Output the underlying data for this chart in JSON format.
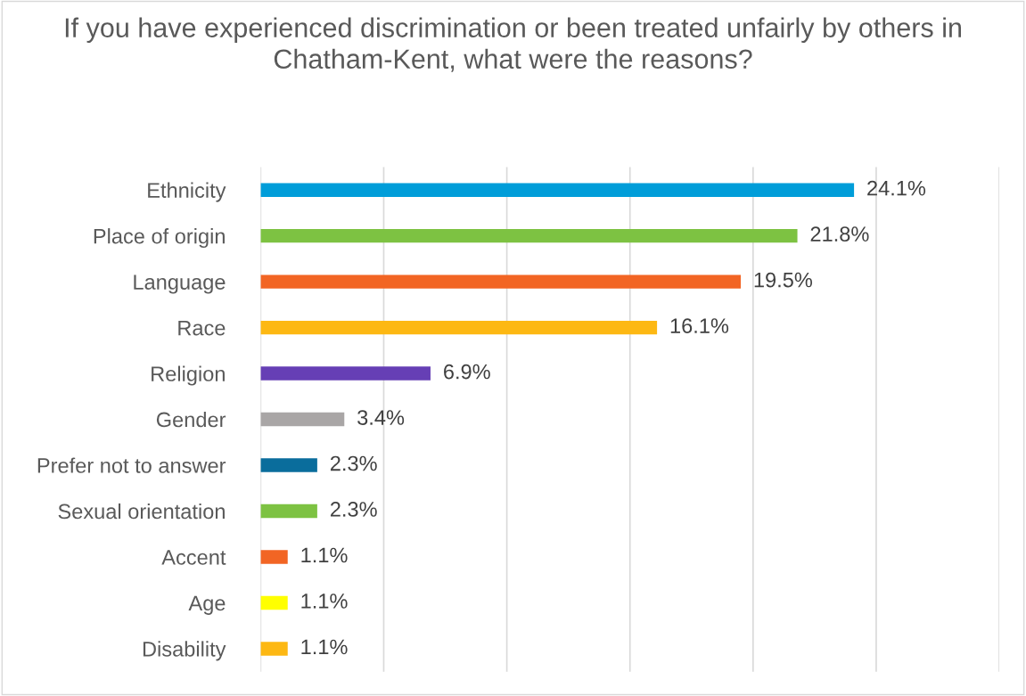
{
  "chart_data": {
    "type": "bar",
    "orientation": "horizontal",
    "title": "If you have experienced discrimination or been treated unfairly by others in Chatham-Kent, what were the reasons?",
    "categories": [
      "Ethnicity",
      "Place of origin",
      "Language",
      "Race",
      "Religion",
      "Gender",
      "Prefer not to answer",
      "Sexual orientation",
      "Accent",
      "Age",
      "Disability"
    ],
    "values": [
      24.1,
      21.8,
      19.5,
      16.1,
      6.9,
      3.4,
      2.3,
      2.3,
      1.1,
      1.1,
      1.1
    ],
    "colors": [
      "#009dd9",
      "#7dc242",
      "#f26524",
      "#fdb813",
      "#663fb5",
      "#a9a6a6",
      "#0a6d9c",
      "#7dc242",
      "#f26524",
      "#ffff00",
      "#fdb813"
    ],
    "value_labels": [
      "24.1%",
      "21.8%",
      "19.5%",
      "16.1%",
      "6.9%",
      "3.4%",
      "2.3%",
      "2.3%",
      "1.1%",
      "1.1%",
      "1.1%"
    ],
    "xlim": [
      0,
      30
    ],
    "xticks": [
      {
        "value": 0,
        "label": null
      },
      {
        "value": 5,
        "label": null
      },
      {
        "value": 10,
        "label": null
      },
      {
        "value": 15,
        "label": null
      },
      {
        "value": 20,
        "label": null
      },
      {
        "value": 25,
        "label": null
      },
      {
        "value": 30,
        "label": null
      }
    ],
    "grid": "x",
    "tick_labels": "y"
  }
}
